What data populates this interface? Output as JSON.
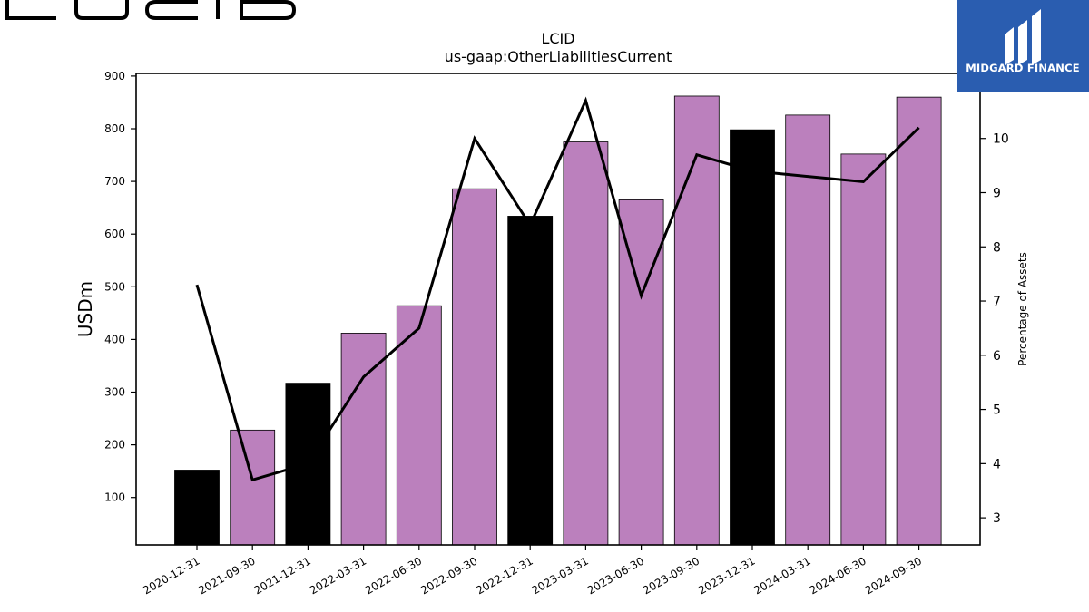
{
  "brand": {
    "wordmark": "LUCID"
  },
  "watermark": {
    "name": "MIDGARD FINANCE",
    "icon": "midgard-logo-icon",
    "color": "#2a5db0"
  },
  "chart_data": {
    "type": "bar",
    "title": "LCID",
    "subtitle": "us-gaap:OtherLiabilitiesCurrent",
    "ylabel": "USDm",
    "y2label": "Percentage of Assets",
    "categories": [
      "2020-12-31",
      "2021-09-30",
      "2021-12-31",
      "2022-03-31",
      "2022-06-30",
      "2022-09-30",
      "2022-12-31",
      "2023-03-31",
      "2023-06-30",
      "2023-09-30",
      "2023-12-31",
      "2024-03-31",
      "2024-06-30",
      "2024-09-30"
    ],
    "series": [
      {
        "type": "bar",
        "axis": "left",
        "values": [
          152,
          228,
          317,
          412,
          464,
          686,
          634,
          775,
          665,
          862,
          798,
          826,
          752,
          860
        ]
      },
      {
        "type": "line",
        "axis": "right",
        "values": [
          7.3,
          3.7,
          4.0,
          5.6,
          6.5,
          10.0,
          8.4,
          10.7,
          7.1,
          9.7,
          9.4,
          9.3,
          9.2,
          10.2
        ]
      }
    ],
    "bar_colors": [
      "#000000",
      "#bb80bd",
      "#000000",
      "#bb80bd",
      "#bb80bd",
      "#bb80bd",
      "#000000",
      "#bb80bd",
      "#bb80bd",
      "#bb80bd",
      "#000000",
      "#bb80bd",
      "#bb80bd",
      "#bb80bd"
    ],
    "line_color": "#000000",
    "ylim": [
      10,
      905
    ],
    "y2lim": [
      2.5,
      11.2
    ],
    "yticks": [
      100,
      200,
      300,
      400,
      500,
      600,
      700,
      800,
      900
    ],
    "y2ticks": [
      3,
      4,
      5,
      6,
      7,
      8,
      9,
      10
    ],
    "grid": false,
    "legend": "none"
  }
}
